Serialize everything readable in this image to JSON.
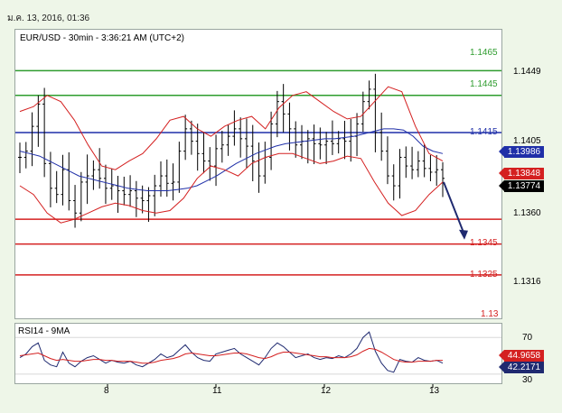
{
  "header": {
    "date_text": "ม.ค. 13, 2016, 01:36"
  },
  "chart_data": [
    {
      "type": "line",
      "title": "EUR/USD - 30min - 3:36:21 AM (UTC+2)",
      "x_ticks": [
        "8",
        "11",
        "12",
        "13"
      ],
      "y_ticks": [
        "1.1449",
        "1.1405",
        "1.1360",
        "1.1316"
      ],
      "ylim": [
        1.1265,
        1.1498
      ],
      "horizontal_levels": [
        {
          "label": "1.1465",
          "value": 1.1465,
          "color": "#2e9c2e"
        },
        {
          "label": "1.1445",
          "value": 1.1445,
          "color": "#2e9c2e"
        },
        {
          "label": "1.1415",
          "value": 1.1415,
          "color": "#1f2fa8"
        },
        {
          "label": "1.1345",
          "value": 1.1345,
          "color": "#d42020"
        },
        {
          "label": "1.1325",
          "value": 1.1325,
          "color": "#d42020"
        },
        {
          "label": "1.13",
          "value": 1.13,
          "color": "#d42020"
        }
      ],
      "price_markers": [
        {
          "label": "1.13986",
          "value": 1.13986,
          "color": "#1f2fa8"
        },
        {
          "label": "1.13848",
          "value": 1.13848,
          "color": "#d42020"
        },
        {
          "label": "1.13774",
          "value": 1.13774,
          "color": "#000000"
        }
      ],
      "series": [
        {
          "type": "ohlc",
          "color": "#000000",
          "values": [
            1.1395,
            1.14,
            1.142,
            1.1438,
            1.139,
            1.137,
            1.1365,
            1.1385,
            1.136,
            1.135,
            1.1375,
            1.138,
            1.1385,
            1.1378,
            1.137,
            1.1372,
            1.1368,
            1.1365,
            1.1368,
            1.1362,
            1.136,
            1.1364,
            1.1372,
            1.138,
            1.1374,
            1.1375,
            1.14,
            1.1418,
            1.1408,
            1.1398,
            1.1392,
            1.1388,
            1.1402,
            1.1405,
            1.1412,
            1.1418,
            1.141,
            1.1404,
            1.1392,
            1.138,
            1.1395,
            1.1422,
            1.144,
            1.143,
            1.1418,
            1.1405,
            1.1408,
            1.141,
            1.1406,
            1.1405,
            1.1408,
            1.1406,
            1.141,
            1.1408,
            1.1412,
            1.1422,
            1.144,
            1.145,
            1.1415,
            1.14,
            1.138,
            1.1372,
            1.1395,
            1.1388,
            1.1385,
            1.1392,
            1.1386,
            1.1383,
            1.1385,
            1.1378
          ]
        },
        {
          "type": "ma",
          "color": "#1f2fa8",
          "values": [
            1.14,
            1.1398,
            1.1396,
            1.1392,
            1.1388,
            1.1384,
            1.138,
            1.1378,
            1.1376,
            1.1374,
            1.1372,
            1.137,
            1.1369,
            1.1368,
            1.1368,
            1.1368,
            1.1369,
            1.137,
            1.1372,
            1.1376,
            1.138,
            1.1385,
            1.139,
            1.1394,
            1.1398,
            1.1401,
            1.1404,
            1.1406,
            1.1407,
            1.1408,
            1.1409,
            1.141,
            1.141,
            1.1411,
            1.1412,
            1.1414,
            1.1416,
            1.1418,
            1.1418,
            1.1417,
            1.1412,
            1.1404,
            1.14,
            1.1398
          ]
        },
        {
          "type": "bollinger_upper",
          "color": "#d42020",
          "values": [
            1.1432,
            1.1436,
            1.1445,
            1.144,
            1.1425,
            1.1405,
            1.1388,
            1.1385,
            1.1392,
            1.1398,
            1.141,
            1.1425,
            1.1428,
            1.1418,
            1.1412,
            1.142,
            1.1425,
            1.1428,
            1.1418,
            1.1435,
            1.1445,
            1.1448,
            1.144,
            1.1432,
            1.1426,
            1.1428,
            1.144,
            1.1452,
            1.1448,
            1.142,
            1.1398,
            1.1392
          ]
        },
        {
          "type": "bollinger_lower",
          "color": "#d42020",
          "values": [
            1.1372,
            1.1365,
            1.135,
            1.1342,
            1.1345,
            1.135,
            1.1355,
            1.1358,
            1.1356,
            1.1352,
            1.135,
            1.1352,
            1.1362,
            1.1378,
            1.1388,
            1.1385,
            1.138,
            1.139,
            1.1395,
            1.1398,
            1.1398,
            1.1394,
            1.139,
            1.1392,
            1.1396,
            1.1394,
            1.1375,
            1.1358,
            1.1348,
            1.1352,
            1.1365,
            1.1375
          ]
        }
      ],
      "forecast_arrow": {
        "color": "#1f2a70",
        "from": 1.1375,
        "to": 1.133
      }
    },
    {
      "type": "line",
      "title": "RSI14 - 9MA",
      "y_ticks": [
        "70",
        "30"
      ],
      "ylim": [
        20,
        85
      ],
      "price_markers": [
        {
          "label": "44.9658",
          "value": 44.9658,
          "color": "#d42020"
        },
        {
          "label": "42.2171",
          "value": 42.2171,
          "color": "#1f2a70"
        }
      ],
      "series": [
        {
          "type": "rsi",
          "color": "#1f2a70",
          "values": [
            48,
            52,
            60,
            64,
            45,
            40,
            38,
            54,
            42,
            38,
            44,
            48,
            50,
            46,
            42,
            45,
            43,
            42,
            44,
            40,
            38,
            42,
            46,
            52,
            48,
            50,
            56,
            62,
            54,
            48,
            45,
            44,
            52,
            54,
            56,
            58,
            52,
            48,
            44,
            40,
            48,
            58,
            64,
            60,
            54,
            48,
            50,
            52,
            48,
            46,
            48,
            47,
            50,
            48,
            52,
            58,
            70,
            76,
            55,
            42,
            34,
            32,
            46,
            44,
            43,
            48,
            45,
            44,
            45,
            42
          ]
        },
        {
          "type": "rsi_ma",
          "color": "#d42020",
          "values": [
            50,
            51,
            52,
            53,
            50,
            47,
            45,
            46,
            45,
            44,
            44,
            45,
            46,
            46,
            45,
            45,
            44,
            44,
            44,
            43,
            42,
            42,
            43,
            45,
            46,
            47,
            49,
            52,
            53,
            52,
            51,
            50,
            50,
            51,
            52,
            53,
            53,
            52,
            50,
            48,
            47,
            49,
            52,
            54,
            54,
            53,
            52,
            51,
            50,
            49,
            49,
            48,
            48,
            48,
            49,
            51,
            55,
            58,
            57,
            54,
            50,
            46,
            44,
            43,
            43,
            44,
            44,
            44,
            45,
            45
          ]
        }
      ]
    }
  ]
}
